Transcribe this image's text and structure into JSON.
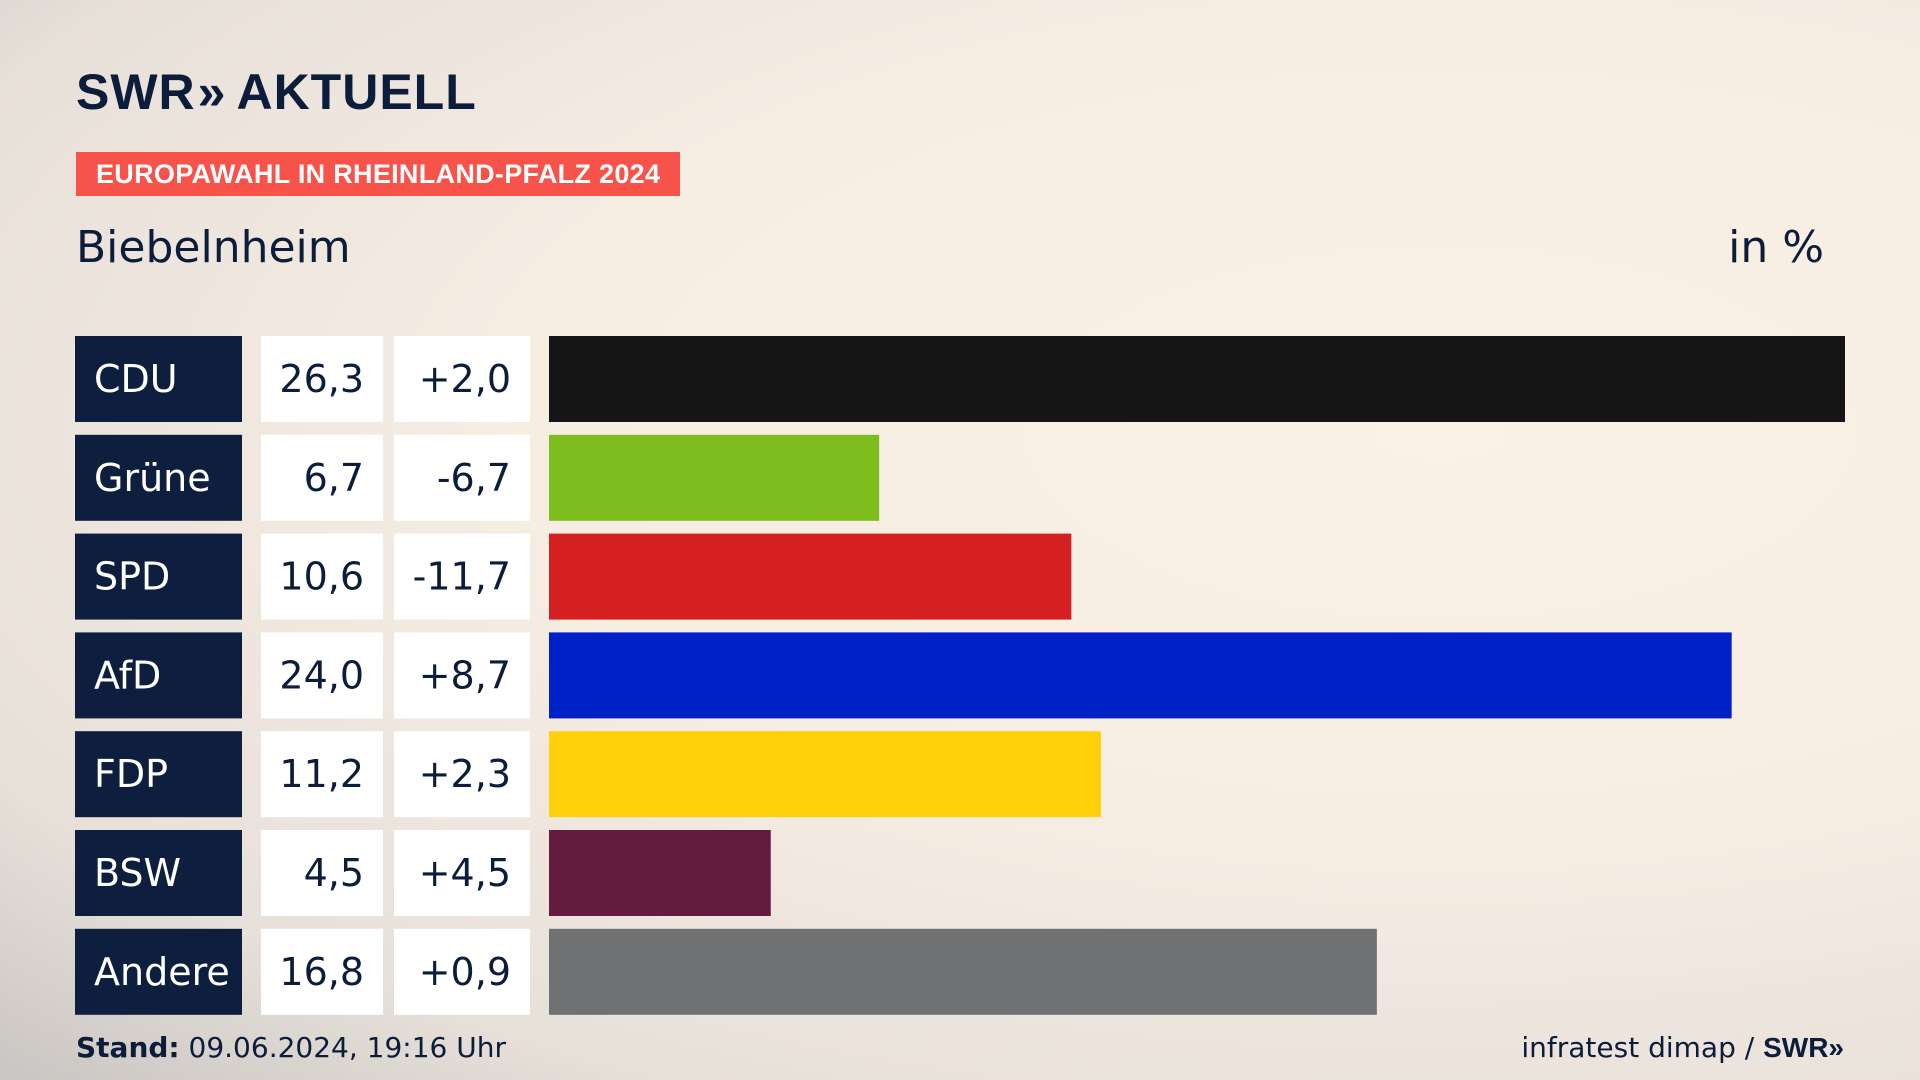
{
  "header": {
    "logo_text": "SWR",
    "logo_chevrons": "»",
    "logo_product": "AKTUELL",
    "badge": "EUROPAWAHL IN RHEINLAND-PFALZ 2024",
    "region": "Biebelnheim",
    "unit": "in %"
  },
  "chart_data": {
    "type": "bar",
    "categories": [
      "CDU",
      "Grüne",
      "SPD",
      "AfD",
      "FDP",
      "BSW",
      "Andere"
    ],
    "values": [
      26.3,
      6.7,
      10.6,
      24.0,
      11.2,
      4.5,
      16.8
    ],
    "values_label": [
      "26,3",
      "6,7",
      "10,6",
      "24,0",
      "11,2",
      "4,5",
      "16,8"
    ],
    "changes_label": [
      "+2,0",
      "-6,7",
      "-11,7",
      "+8,7",
      "+2,3",
      "+4,5",
      "+0,9"
    ],
    "colors": [
      "#151515",
      "#7dbd1d",
      "#d42020",
      "#0020c8",
      "#fdd00a",
      "#651a3f",
      "#707172"
    ],
    "xlim": [
      0,
      26.3
    ]
  },
  "footer": {
    "stand_label": "Stand:",
    "stand_value": "09.06.2024, 19:16 Uhr",
    "source": "infratest dimap /",
    "brand": "SWR»"
  }
}
